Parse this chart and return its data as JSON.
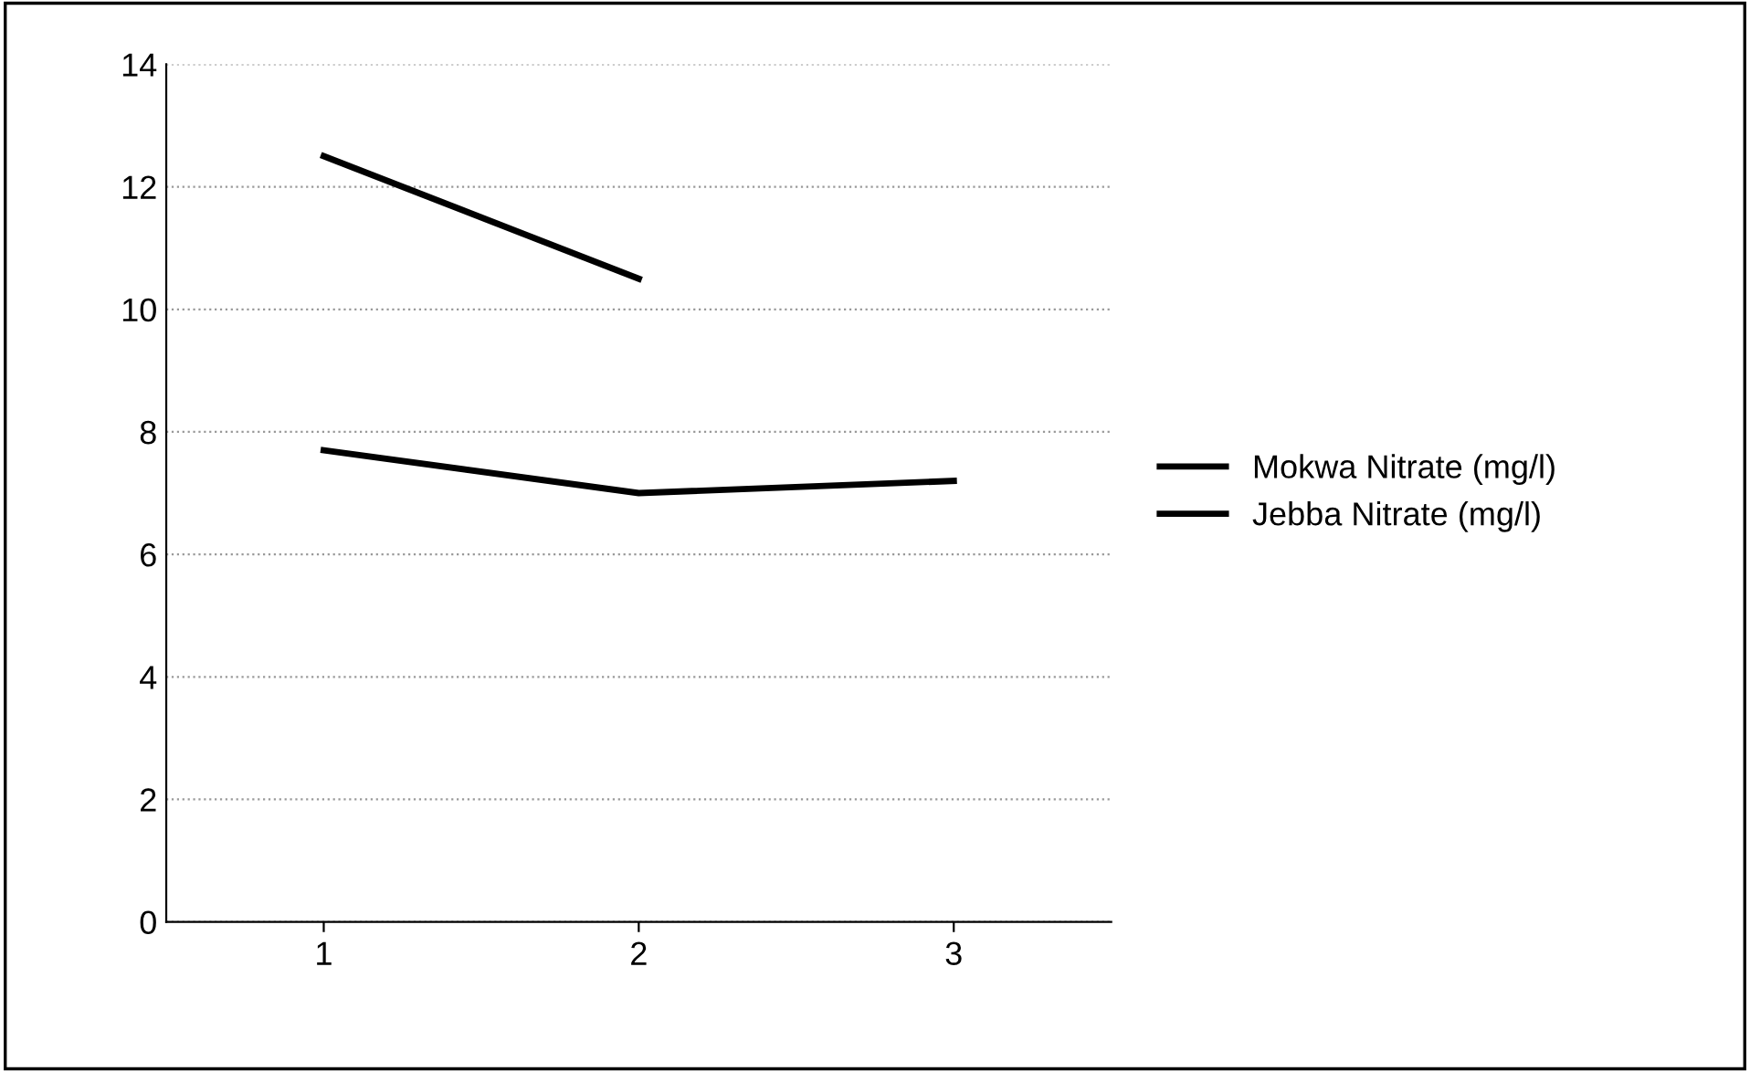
{
  "chart_data": {
    "type": "line",
    "categories": [
      "1",
      "2",
      "3"
    ],
    "series": [
      {
        "name": "Mokwa Nitrate (mg/l)",
        "color": "#000000",
        "values": [
          12.5,
          10.5,
          null
        ]
      },
      {
        "name": "Jebba Nitrate (mg/l)",
        "color": "#000000",
        "values": [
          7.7,
          7.0,
          7.2
        ]
      }
    ],
    "ylim": [
      0,
      14
    ],
    "yticks": [
      0,
      2,
      4,
      6,
      8,
      10,
      12,
      14
    ],
    "grid": "y",
    "legend": "right",
    "marker": "none",
    "line_style": "solid"
  }
}
